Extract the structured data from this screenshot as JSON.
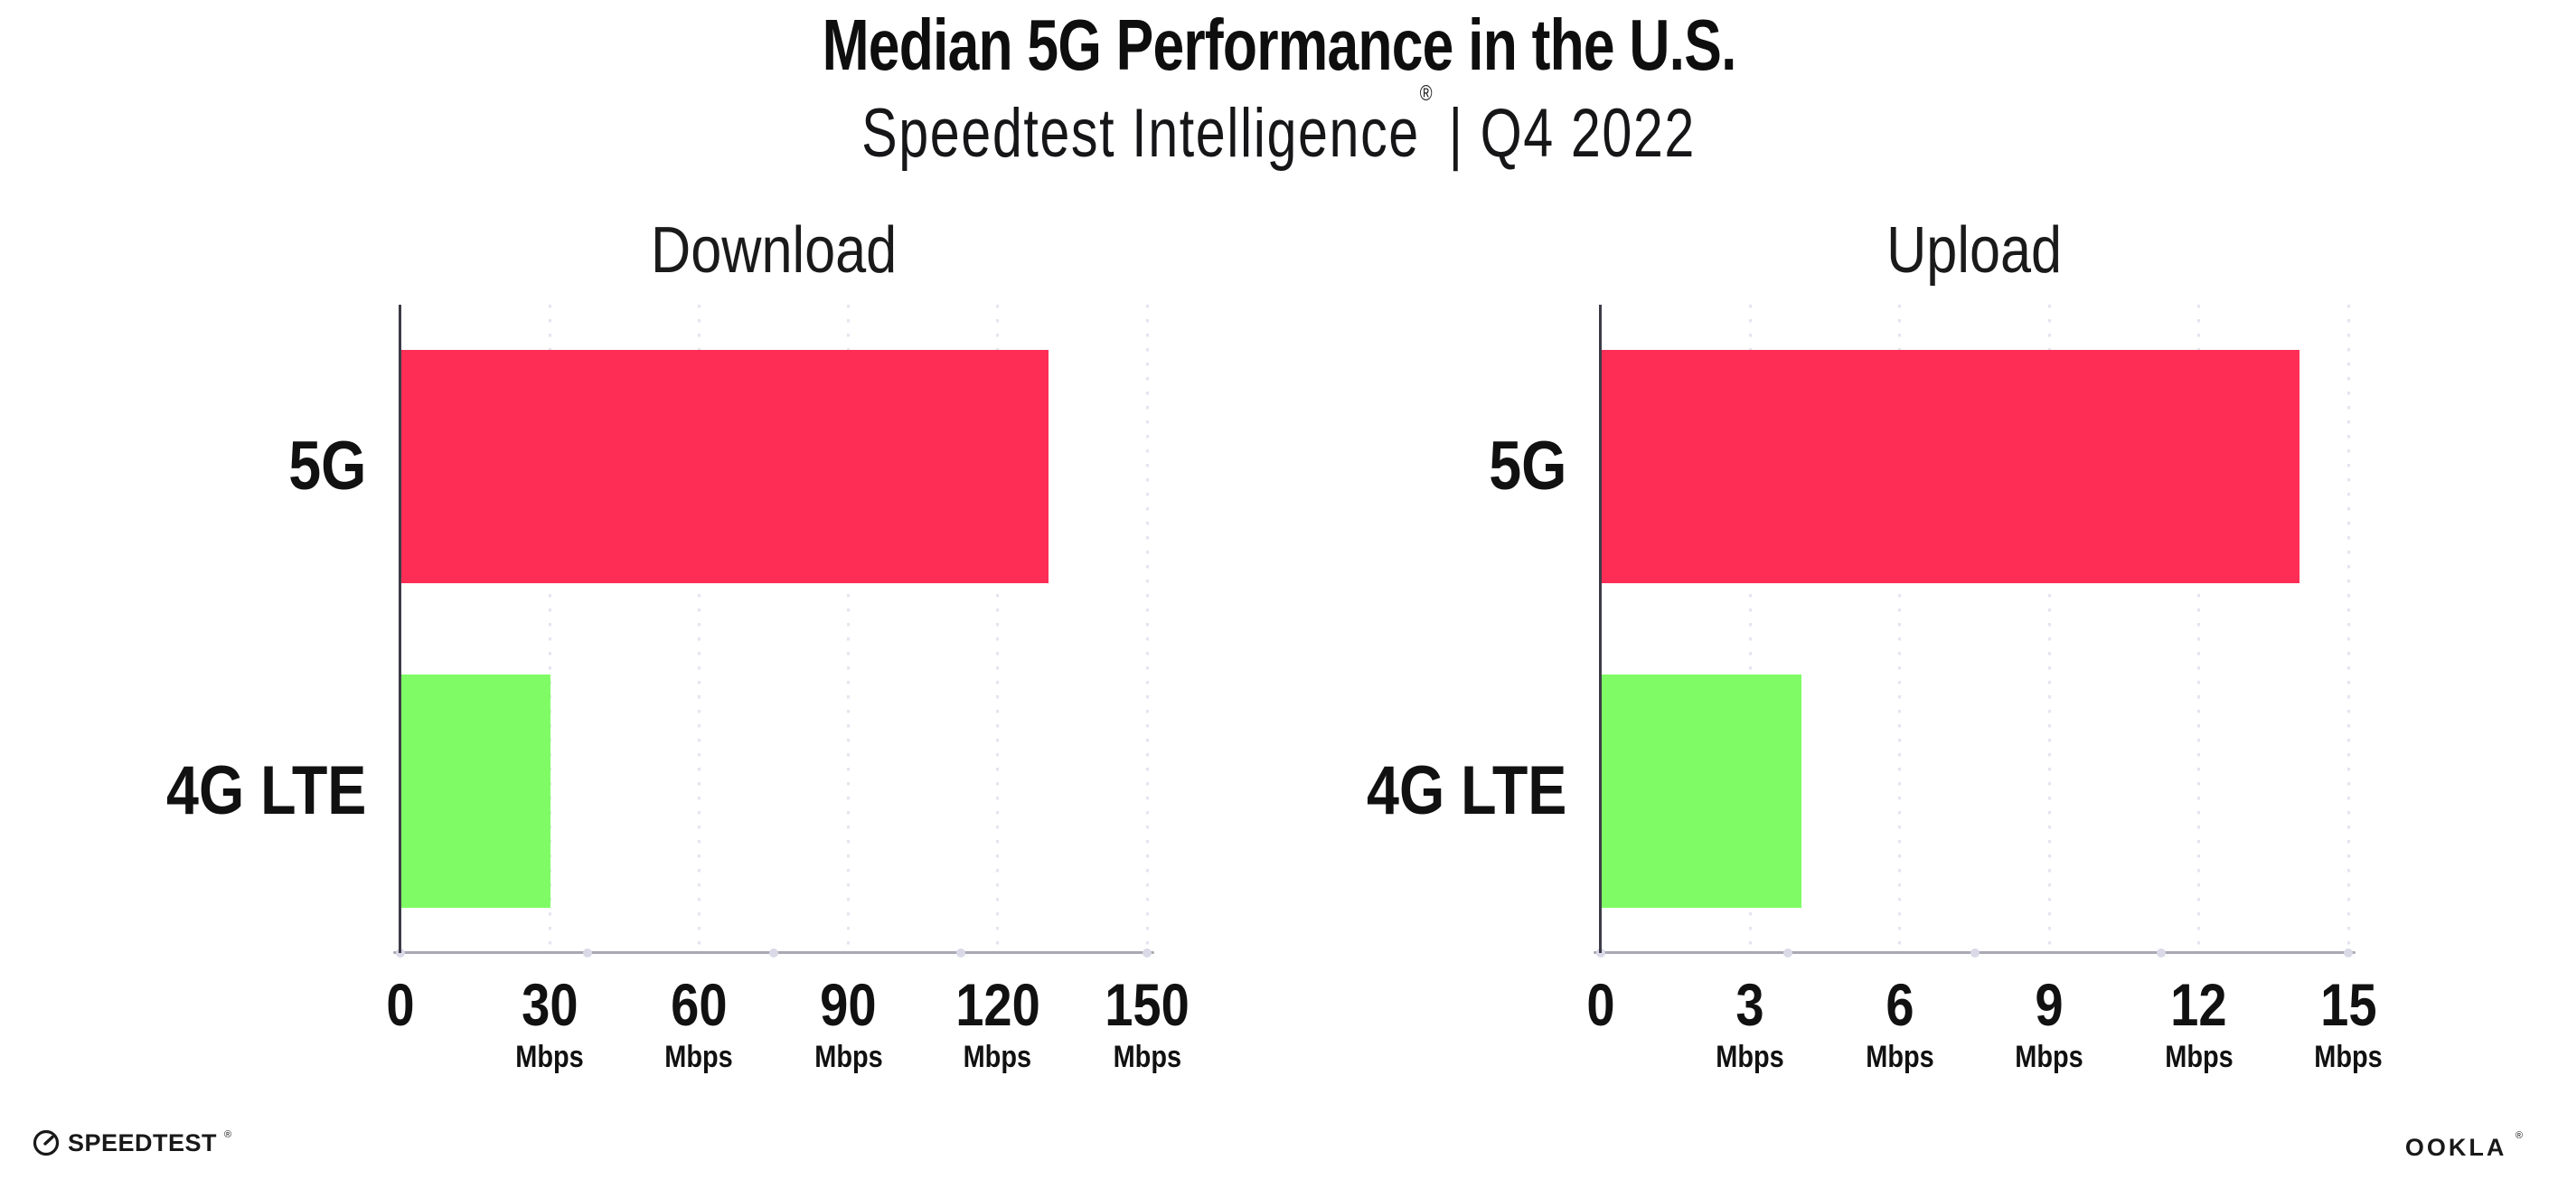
{
  "header": {
    "title": "Median 5G Performance in the U.S.",
    "subtitle_brand": "Speedtest Intelligence",
    "subtitle_mark": "®",
    "subtitle_period": " | Q4 2022"
  },
  "chart_data": [
    {
      "type": "bar",
      "orientation": "horizontal",
      "title": "Download",
      "categories": [
        "5G",
        "4G LTE"
      ],
      "values": [
        130,
        30
      ],
      "unit": "Mbps",
      "xlim": [
        0,
        150
      ],
      "xticks": [
        0,
        30,
        60,
        90,
        120,
        150
      ],
      "bar_colors": [
        "#FD2D55",
        "#7FFC65"
      ],
      "grid": "vertical-dotted",
      "legend": "none"
    },
    {
      "type": "bar",
      "orientation": "horizontal",
      "title": "Upload",
      "categories": [
        "5G",
        "4G LTE"
      ],
      "values": [
        14,
        4
      ],
      "unit": "Mbps",
      "xlim": [
        0,
        15
      ],
      "xticks": [
        0,
        3,
        6,
        9,
        12,
        15
      ],
      "bar_colors": [
        "#FD2D55",
        "#7FFC65"
      ],
      "grid": "vertical-dotted",
      "legend": "none"
    }
  ],
  "footer": {
    "speedtest_label": "SPEEDTEST",
    "speedtest_mark": "®",
    "speedtest_icon": "gauge-icon",
    "ookla_label": "OOKLA",
    "ookla_mark": "®"
  }
}
